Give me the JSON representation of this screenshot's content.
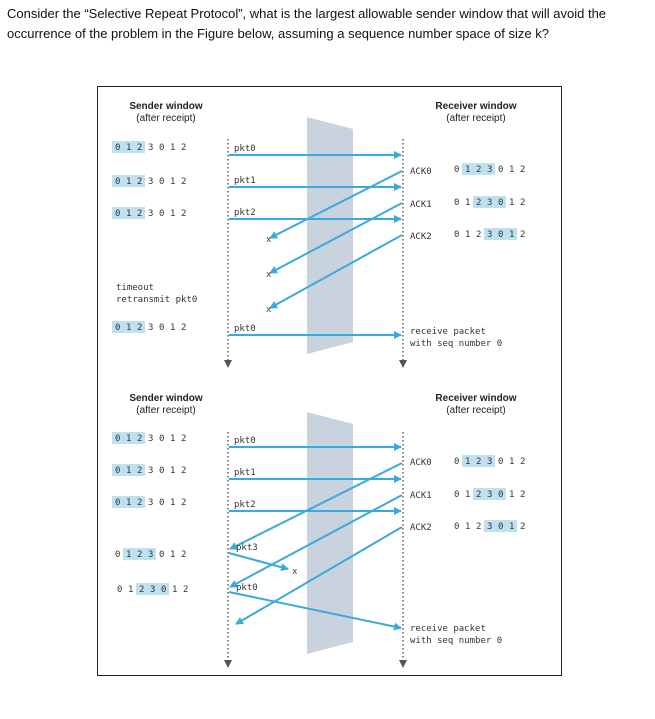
{
  "question": "Consider the “Selective Repeat Protocol”, what is the largest allowable sender window that will avoid the occurrence of the problem in the Figure below, assuming a sequence number space of size k?",
  "seq_numbers": [
    "0",
    "1",
    "2",
    "3",
    "0",
    "1",
    "2"
  ],
  "colors": {
    "arrow": "#3aa9dc",
    "window": "#bfe0ef",
    "channel": "#c9d3de",
    "timeline": "#555555"
  },
  "top": {
    "sender_header": "Sender window",
    "sender_sub": "(after receipt)",
    "receiver_header": "Receiver window",
    "receiver_sub": "(after receipt)",
    "pkt0": "pkt0",
    "pkt1": "pkt1",
    "pkt2": "pkt2",
    "ack0": "ACK0",
    "ack1": "ACK1",
    "ack2": "ACK2",
    "timeout": "timeout",
    "retransmit": "retransmit pkt0",
    "pkt0_retx": "pkt0",
    "receive1": "receive packet",
    "receive2": "with seq number 0"
  },
  "bottom": {
    "sender_header": "Sender window",
    "sender_sub": "(after receipt)",
    "receiver_header": "Receiver window",
    "receiver_sub": "(after receipt)",
    "pkt0": "pkt0",
    "pkt1": "pkt1",
    "pkt2": "pkt2",
    "pkt3": "pkt3",
    "pkt0_new": "pkt0",
    "ack0": "ACK0",
    "ack1": "ACK1",
    "ack2": "ACK2",
    "receive1": "receive packet",
    "receive2": "with seq number 0"
  }
}
